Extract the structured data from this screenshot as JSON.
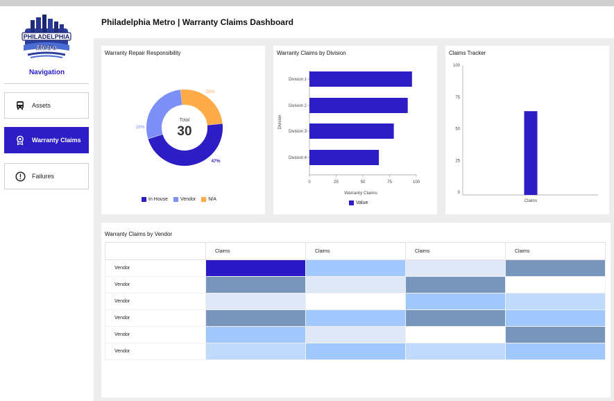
{
  "header": {
    "title": "Philadelphia Metro | Warranty Claims Dashboard"
  },
  "logo": {
    "line1": "PHILADELPHIA",
    "line2": "Metro"
  },
  "sidebar": {
    "title": "Navigation",
    "items": [
      {
        "label": "Assets",
        "icon": "bus-icon",
        "active": false
      },
      {
        "label": "Warranty Claims",
        "icon": "badge-icon",
        "active": true
      },
      {
        "label": "Failures",
        "icon": "alert-circle-icon",
        "active": false
      }
    ]
  },
  "colors": {
    "primary": "#2c1ec4",
    "vendor": "#7b8ff7",
    "na": "#ffab48",
    "accent": "#2a1ad0"
  },
  "donut": {
    "title": "Warranty Repair Responsibility",
    "center_label": "Total",
    "center_value": "30",
    "labels": {
      "in_house": "47%",
      "vendor": "28%",
      "na": "25%"
    },
    "legend": [
      "In House",
      "Vendor",
      "N/A"
    ]
  },
  "division_chart": {
    "title": "Warranty Claims by Division",
    "ylabel": "Division",
    "xlabel": "Warranty Claims",
    "legend": "Value",
    "x_ticks": [
      "0",
      "25",
      "50",
      "75",
      "100"
    ]
  },
  "tracker": {
    "title": "Claims Tracker",
    "y_ticks": [
      "0",
      "25",
      "50",
      "75",
      "100"
    ],
    "category": "Claims"
  },
  "vendor_table": {
    "title": "Warranty Claims by Vendor",
    "headers": [
      "",
      "Claims",
      "Claims",
      "Claims",
      "Claims"
    ],
    "rows": [
      {
        "label": "Vendor",
        "cells": [
          "#2a1ac6",
          "#a0c8fc",
          "#dee8f6",
          "#7896bc"
        ]
      },
      {
        "label": "Vendor",
        "cells": [
          "#7896bc",
          "#dee8f6",
          "#7896bc",
          "#ffffff"
        ]
      },
      {
        "label": "Vendor",
        "cells": [
          "#dee8f6",
          "#ffffff",
          "#a0c8fc",
          "#c0dafb"
        ]
      },
      {
        "label": "Vendor",
        "cells": [
          "#7896bc",
          "#a0c8fc",
          "#7896bc",
          "#a0c8fc"
        ]
      },
      {
        "label": "Vendor",
        "cells": [
          "#a0c8fc",
          "#dee8f6",
          "#ffffff",
          "#7896bc"
        ]
      },
      {
        "label": "Vendor",
        "cells": [
          "#c0dafb",
          "#a0c8fc",
          "#c0dafb",
          "#a0c8fc"
        ]
      }
    ]
  },
  "chart_data": [
    {
      "type": "pie",
      "title": "Warranty Repair Responsibility",
      "categories": [
        "In House",
        "Vendor",
        "N/A"
      ],
      "values": [
        47,
        28,
        25
      ],
      "total": 30,
      "legend": "bottom"
    },
    {
      "type": "bar",
      "orientation": "horizontal",
      "title": "Warranty Claims by Division",
      "categories": [
        "Division 1",
        "Division 2",
        "Division 3",
        "Division 4"
      ],
      "series": [
        {
          "name": "Value",
          "values": [
            96,
            92,
            79,
            65
          ]
        }
      ],
      "xlabel": "Warranty Claims",
      "ylabel": "Division",
      "xlim": [
        0,
        100
      ],
      "legend": "bottom"
    },
    {
      "type": "bar",
      "title": "Claims Tracker",
      "categories": [
        "Claims"
      ],
      "values": [
        66
      ],
      "ylim": [
        0,
        100
      ]
    }
  ]
}
